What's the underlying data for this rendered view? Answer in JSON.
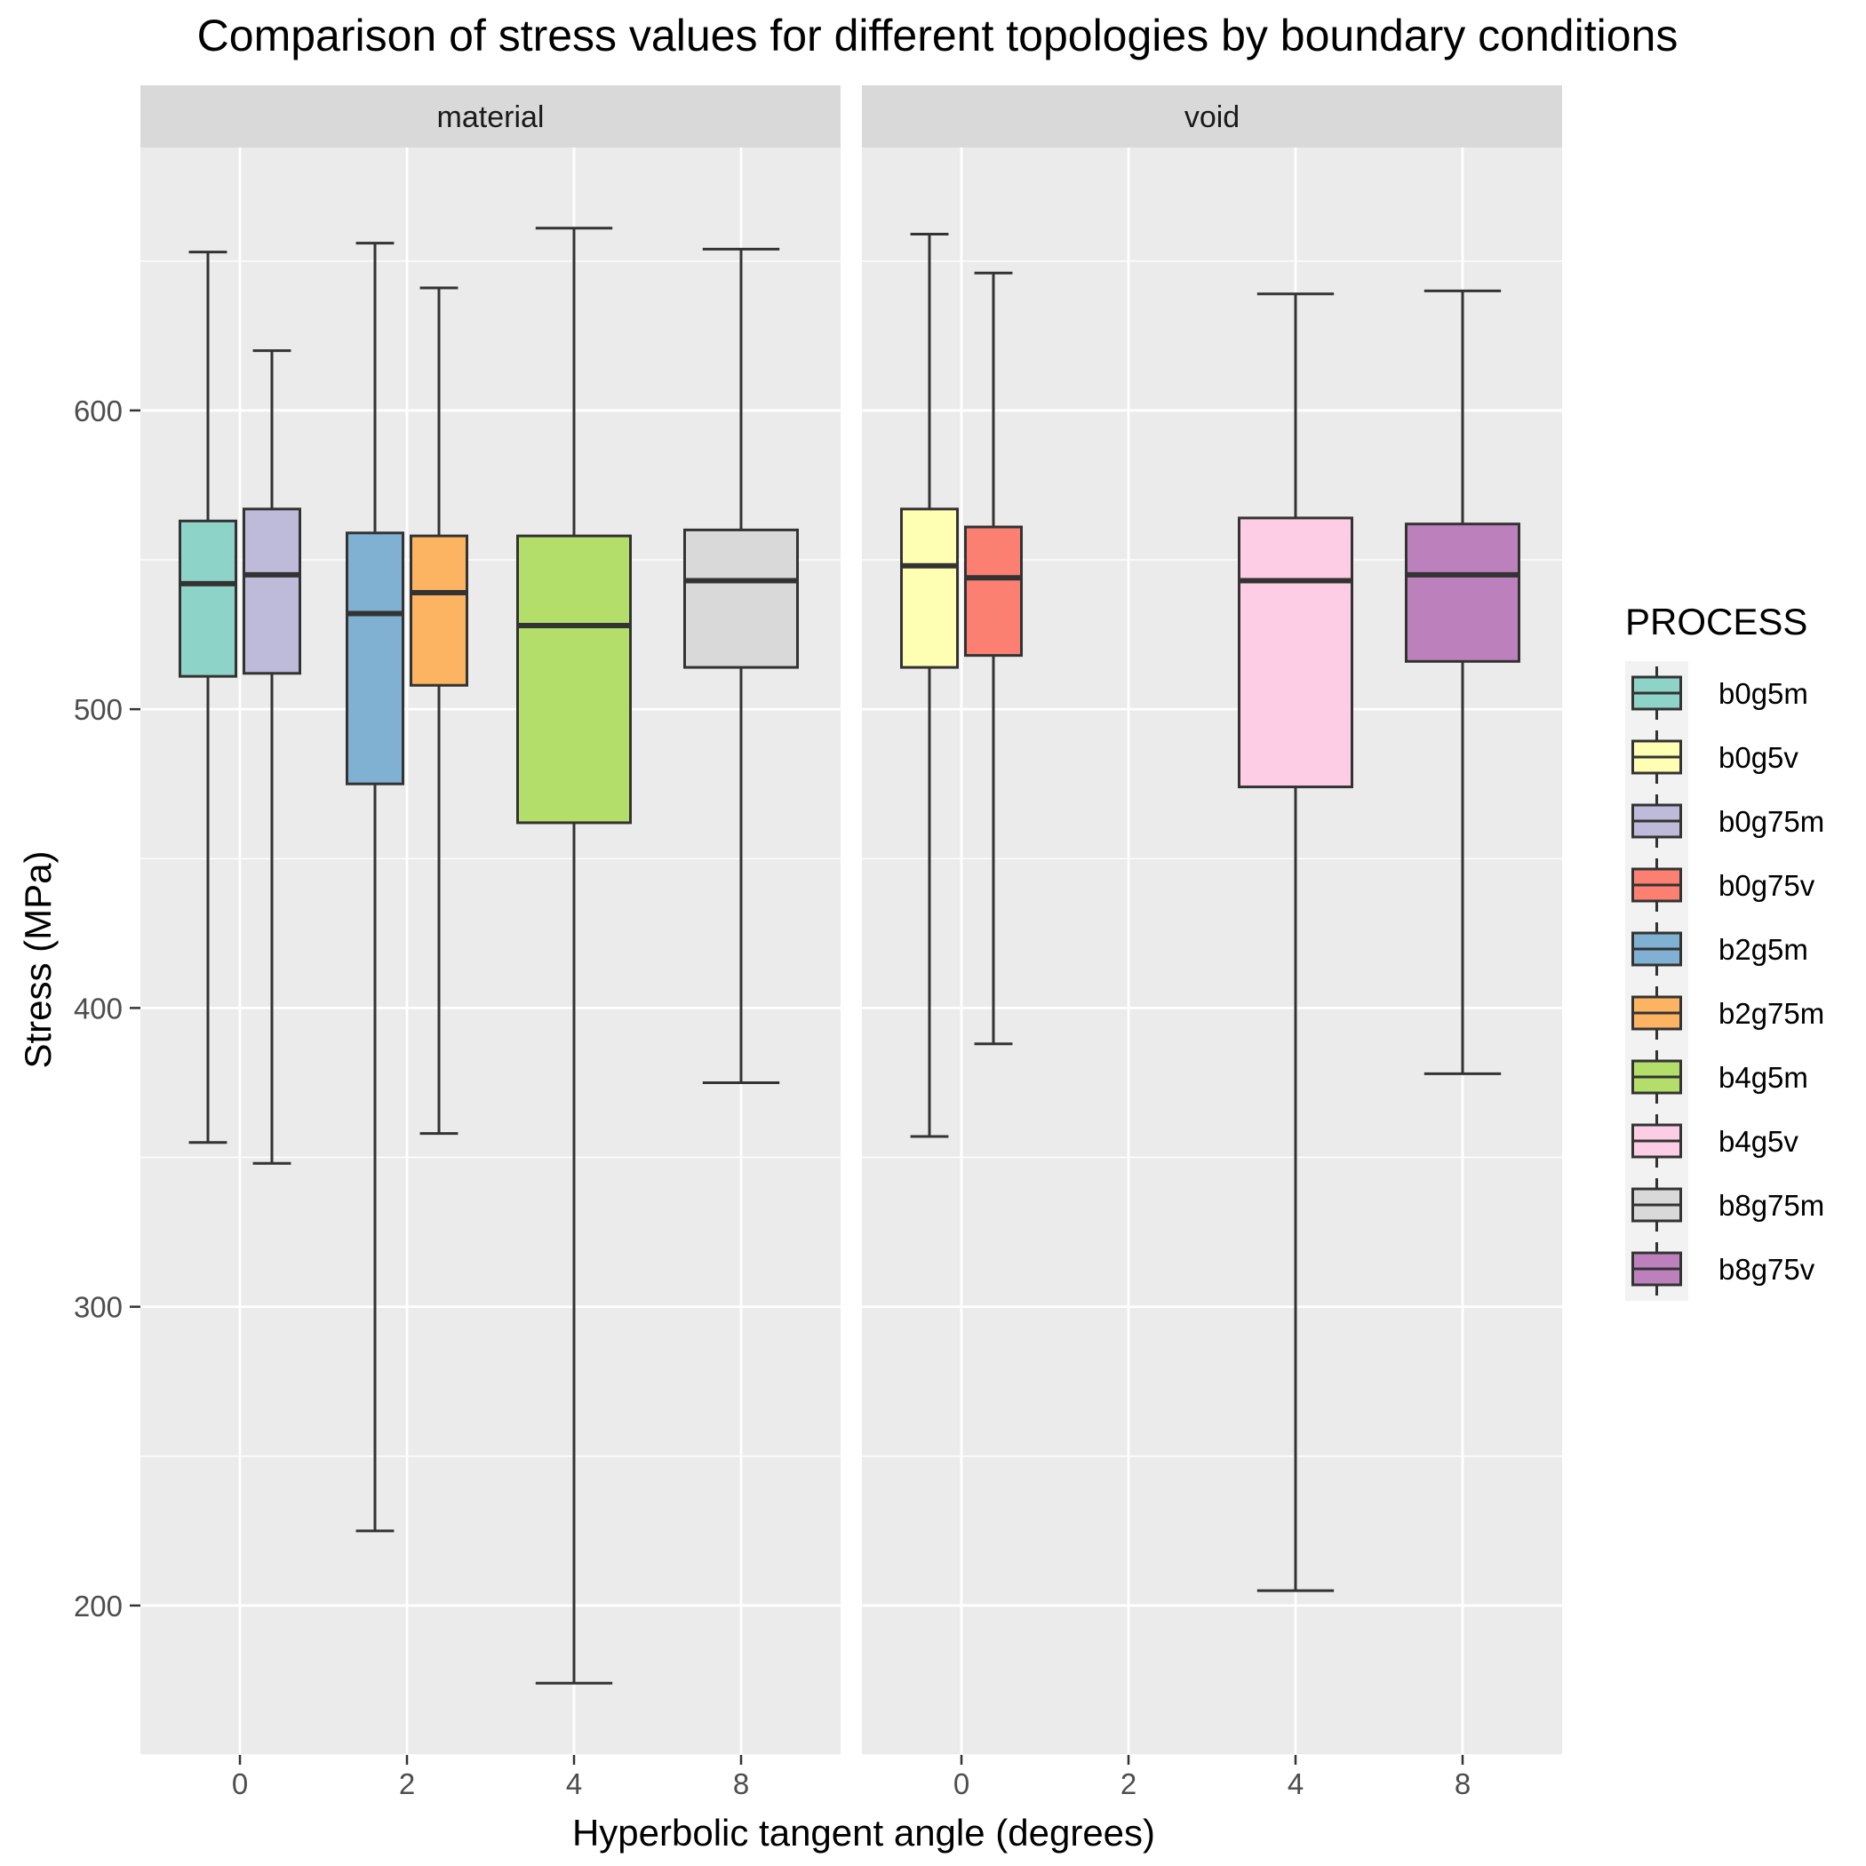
{
  "chart_data": {
    "type": "boxplot",
    "title": "Comparison of stress values for different topologies by boundary conditions",
    "xlabel": "Hyperbolic tangent angle (degrees)",
    "ylabel": "Stress (MPa)",
    "x_categories": [
      "0",
      "2",
      "4",
      "8"
    ],
    "y_ticks": [
      200,
      300,
      400,
      500,
      600
    ],
    "ylim": [
      150,
      688
    ],
    "grid": true,
    "legend_placement": "right",
    "legend": {
      "title": "PROCESS",
      "items": [
        {
          "name": "b0g5m",
          "color": "#8DD3C7"
        },
        {
          "name": "b0g5v",
          "color": "#FFFFB3"
        },
        {
          "name": "b0g75m",
          "color": "#BEBADA"
        },
        {
          "name": "b0g75v",
          "color": "#FB8072"
        },
        {
          "name": "b2g5m",
          "color": "#80B1D3"
        },
        {
          "name": "b2g75m",
          "color": "#FDB462"
        },
        {
          "name": "b4g5m",
          "color": "#B3DE69"
        },
        {
          "name": "b4g5v",
          "color": "#FCCDE5"
        },
        {
          "name": "b8g75m",
          "color": "#D9D9D9"
        },
        {
          "name": "b8g75v",
          "color": "#BC80BD"
        }
      ]
    },
    "facets": [
      {
        "label": "material",
        "boxes": [
          {
            "process": "b0g5m",
            "x": "0",
            "slot": 0,
            "nslots": 2,
            "min": 355,
            "q1": 511,
            "median": 542,
            "q3": 563,
            "max": 653
          },
          {
            "process": "b0g75m",
            "x": "0",
            "slot": 1,
            "nslots": 2,
            "min": 348,
            "q1": 512,
            "median": 545,
            "q3": 567,
            "max": 620
          },
          {
            "process": "b2g5m",
            "x": "2",
            "slot": 0,
            "nslots": 2,
            "min": 225,
            "q1": 475,
            "median": 532,
            "q3": 559,
            "max": 656
          },
          {
            "process": "b2g75m",
            "x": "2",
            "slot": 1,
            "nslots": 2,
            "min": 358,
            "q1": 508,
            "median": 539,
            "q3": 558,
            "max": 641
          },
          {
            "process": "b4g5m",
            "x": "4",
            "slot": 0,
            "nslots": 1,
            "min": 174,
            "q1": 462,
            "median": 528,
            "q3": 558,
            "max": 661
          },
          {
            "process": "b8g75m",
            "x": "8",
            "slot": 0,
            "nslots": 1,
            "min": 375,
            "q1": 514,
            "median": 543,
            "q3": 560,
            "max": 654
          }
        ]
      },
      {
        "label": "void",
        "boxes": [
          {
            "process": "b0g5v",
            "x": "0",
            "slot": 0,
            "nslots": 2,
            "min": 357,
            "q1": 514,
            "median": 548,
            "q3": 567,
            "max": 659
          },
          {
            "process": "b0g75v",
            "x": "0",
            "slot": 1,
            "nslots": 2,
            "min": 388,
            "q1": 518,
            "median": 544,
            "q3": 561,
            "max": 646
          },
          {
            "process": "b4g5v",
            "x": "4",
            "slot": 0,
            "nslots": 1,
            "min": 205,
            "q1": 474,
            "median": 543,
            "q3": 564,
            "max": 639
          },
          {
            "process": "b8g75v",
            "x": "8",
            "slot": 0,
            "nslots": 1,
            "min": 378,
            "q1": 516,
            "median": 545,
            "q3": 562,
            "max": 640
          }
        ]
      }
    ]
  }
}
